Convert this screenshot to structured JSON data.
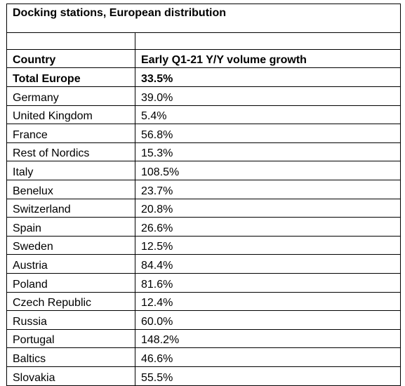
{
  "chart_data": {
    "type": "table",
    "title": "Docking stations, European distribution",
    "columns": [
      "Country",
      "Early Q1-21 Y/Y volume growth"
    ],
    "total": {
      "label": "Total Europe",
      "value": "33.5%"
    },
    "rows": [
      {
        "label": "Germany",
        "value": "39.0%"
      },
      {
        "label": "United Kingdom",
        "value": "5.4%"
      },
      {
        "label": "France",
        "value": "56.8%"
      },
      {
        "label": "Rest of Nordics",
        "value": "15.3%"
      },
      {
        "label": "Italy",
        "value": "108.5%"
      },
      {
        "label": "Benelux",
        "value": "23.7%"
      },
      {
        "label": "Switzerland",
        "value": "20.8%"
      },
      {
        "label": "Spain",
        "value": "26.6%"
      },
      {
        "label": "Sweden",
        "value": "12.5%"
      },
      {
        "label": "Austria",
        "value": "84.4%"
      },
      {
        "label": "Poland",
        "value": "81.6%"
      },
      {
        "label": "Czech Republic",
        "value": "12.4%"
      },
      {
        "label": "Russia",
        "value": "60.0%"
      },
      {
        "label": "Portugal",
        "value": "148.2%"
      },
      {
        "label": "Baltics",
        "value": "46.6%"
      },
      {
        "label": "Slovakia",
        "value": "55.5%"
      }
    ]
  }
}
